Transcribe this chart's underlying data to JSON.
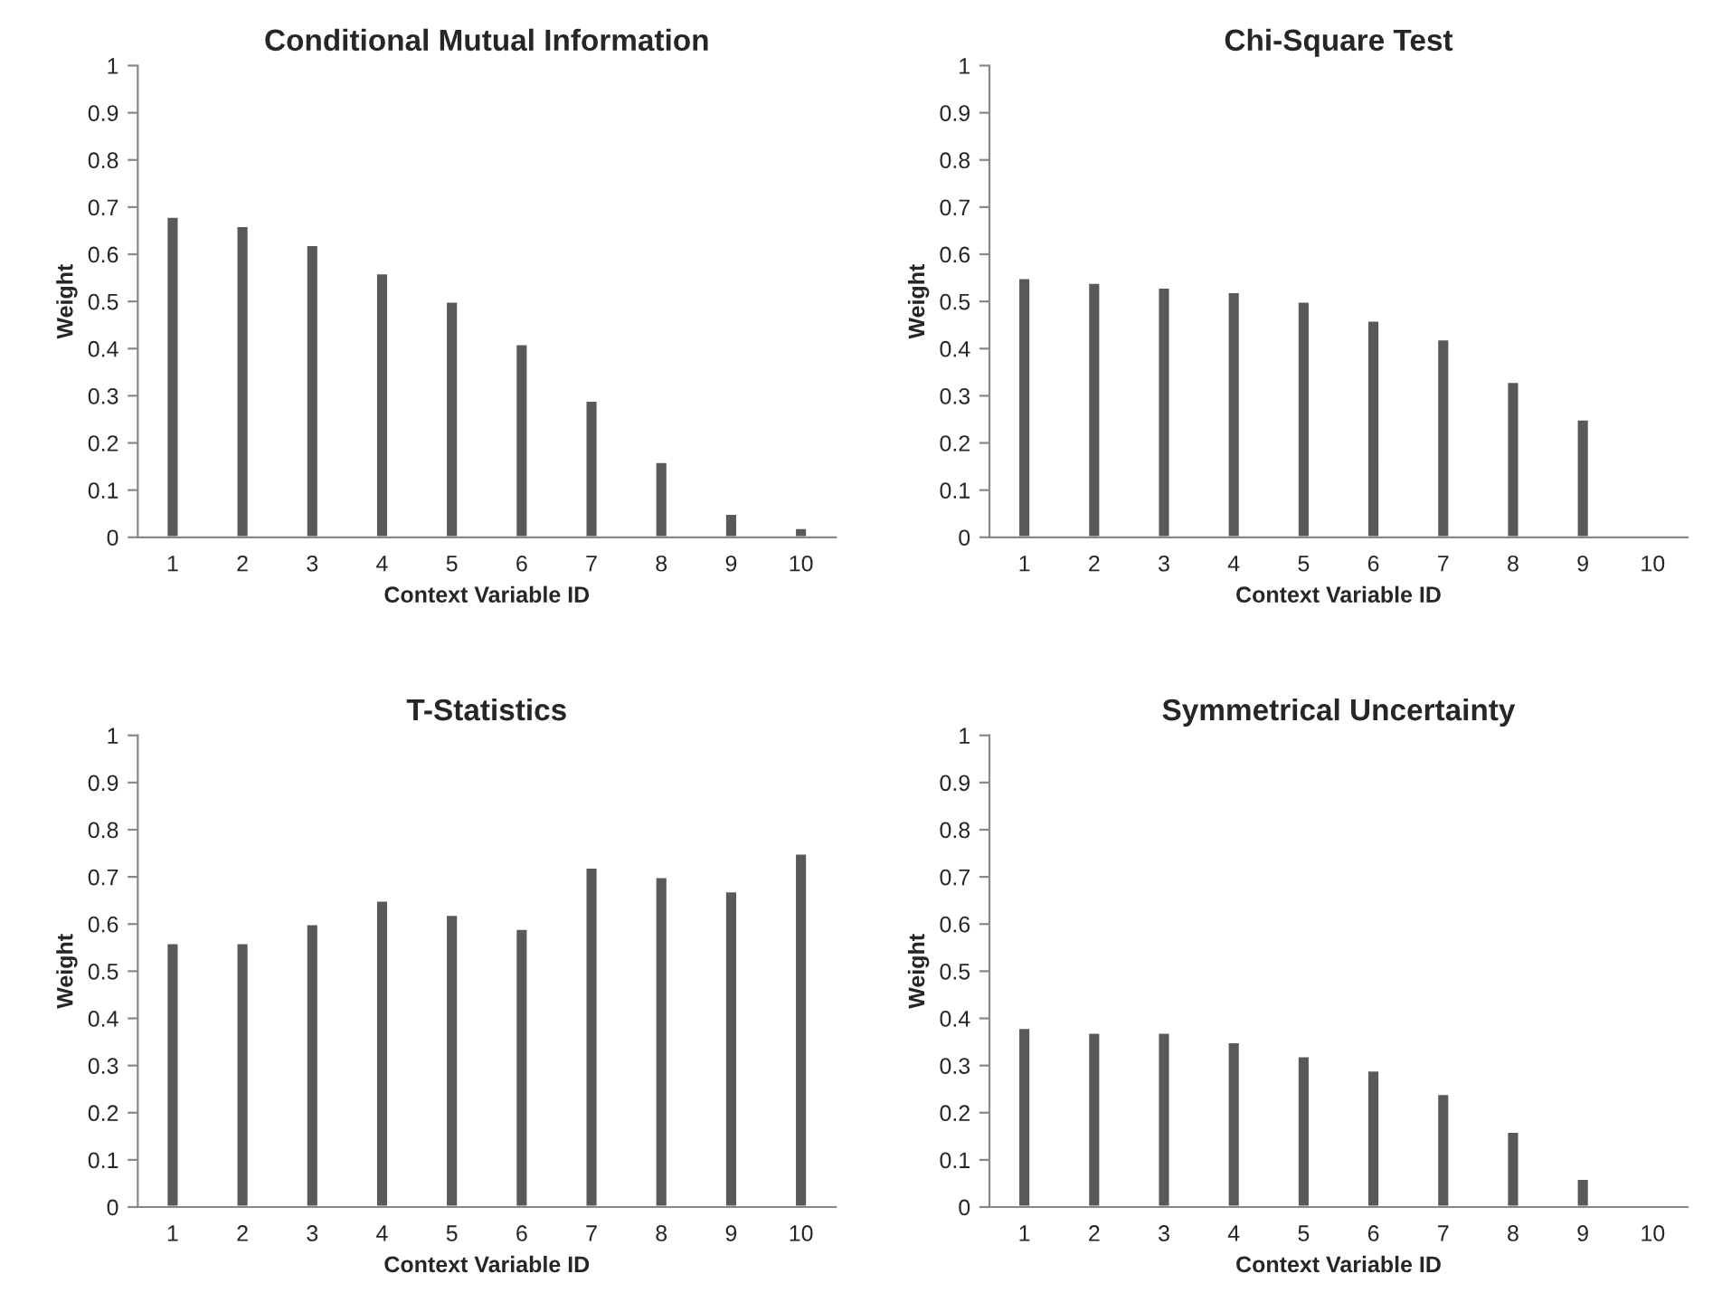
{
  "chart_data": [
    {
      "type": "bar",
      "title": "Conditional Mutual Information",
      "xlabel": "Context Variable ID",
      "ylabel": "Weight",
      "categories": [
        "1",
        "2",
        "3",
        "4",
        "5",
        "6",
        "7",
        "8",
        "9",
        "10"
      ],
      "values": [
        0.68,
        0.66,
        0.62,
        0.56,
        0.5,
        0.41,
        0.29,
        0.16,
        0.05,
        0.02
      ],
      "color": "#595959",
      "ylim": [
        0,
        1
      ],
      "yticks": [
        0,
        0.1,
        0.2,
        0.3,
        0.4,
        0.5,
        0.6,
        0.7,
        0.8,
        0.9,
        1
      ],
      "grid": false,
      "legend": false
    },
    {
      "type": "bar",
      "title": "Chi-Square Test",
      "xlabel": "Context Variable ID",
      "ylabel": "Weight",
      "categories": [
        "1",
        "2",
        "3",
        "4",
        "5",
        "6",
        "7",
        "8",
        "9",
        "10"
      ],
      "values": [
        0.55,
        0.54,
        0.53,
        0.52,
        0.5,
        0.46,
        0.42,
        0.33,
        0.25,
        null
      ],
      "color": "#595959",
      "ylim": [
        0,
        1
      ],
      "yticks": [
        0,
        0.1,
        0.2,
        0.3,
        0.4,
        0.5,
        0.6,
        0.7,
        0.8,
        0.9,
        1
      ],
      "grid": false,
      "legend": false
    },
    {
      "type": "bar",
      "title": "T-Statistics",
      "xlabel": "Context Variable ID",
      "ylabel": "Weight",
      "categories": [
        "1",
        "2",
        "3",
        "4",
        "5",
        "6",
        "7",
        "8",
        "9",
        "10"
      ],
      "values": [
        0.56,
        0.56,
        0.6,
        0.65,
        0.62,
        0.59,
        0.72,
        0.7,
        0.67,
        0.75
      ],
      "color": "#595959",
      "ylim": [
        0,
        1
      ],
      "yticks": [
        0,
        0.1,
        0.2,
        0.3,
        0.4,
        0.5,
        0.6,
        0.7,
        0.8,
        0.9,
        1
      ],
      "grid": false,
      "legend": false
    },
    {
      "type": "bar",
      "title": "Symmetrical Uncertainty",
      "xlabel": "Context Variable ID",
      "ylabel": "Weight",
      "categories": [
        "1",
        "2",
        "3",
        "4",
        "5",
        "6",
        "7",
        "8",
        "9",
        "10"
      ],
      "values": [
        0.38,
        0.37,
        0.37,
        0.35,
        0.32,
        0.29,
        0.24,
        0.16,
        0.06,
        null
      ],
      "color": "#595959",
      "ylim": [
        0,
        1
      ],
      "yticks": [
        0,
        0.1,
        0.2,
        0.3,
        0.4,
        0.5,
        0.6,
        0.7,
        0.8,
        0.9,
        1
      ],
      "grid": false,
      "legend": false
    }
  ]
}
